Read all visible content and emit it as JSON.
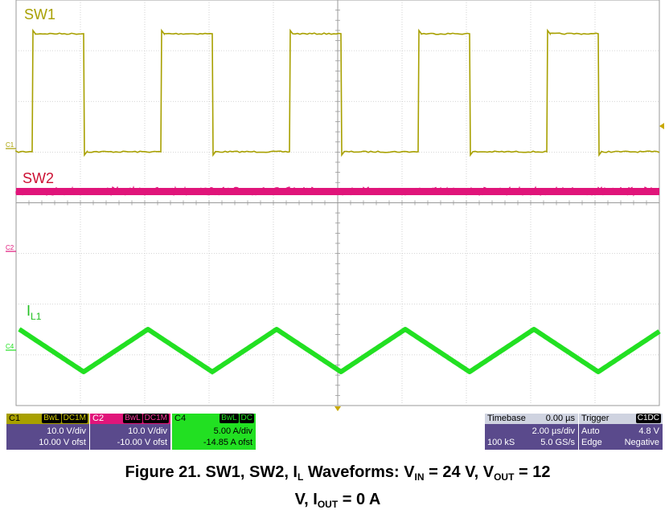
{
  "chart_data": {
    "type": "line",
    "title": "",
    "x_unit": "µs",
    "xlim": [
      -10,
      10
    ],
    "series": [
      {
        "name": "SW1",
        "color": "#a8a000",
        "shape": "square",
        "period_us": 4.0,
        "high_V": 24,
        "low_V": 0,
        "rising_edges_us": [
          -9.5,
          -5.5,
          -1.5,
          2.5,
          6.5
        ],
        "falling_edges_us": [
          -7.9,
          -3.9,
          0.1,
          4.1,
          8.1
        ]
      },
      {
        "name": "SW2",
        "color": "#e0157a",
        "shape": "flat",
        "level_V": 0
      },
      {
        "name": "I_L1",
        "label_main": "I",
        "label_sub": "L1",
        "color": "#22e022",
        "shape": "triangle",
        "period_us": 4.0,
        "min_A": -1.2,
        "max_A": 1.2,
        "peaks_us": [
          -5.9,
          -1.9,
          2.1,
          6.1
        ],
        "valleys_us": [
          -7.9,
          -3.9,
          0.1,
          4.1,
          8.1
        ]
      }
    ],
    "channel_markers": [
      "C1",
      "C2",
      "C4"
    ]
  },
  "panels": {
    "c1": {
      "name": "C1",
      "tag1": "BwL",
      "tag2": "DC1M",
      "vdiv": "10.0 V/div",
      "offset": "10.00 V ofst"
    },
    "c2": {
      "name": "C2",
      "tag1": "BwL",
      "tag2": "DC1M",
      "vdiv": "10.0 V/div",
      "offset": "-10.00 V ofst"
    },
    "c4": {
      "name": "C4",
      "tag1": "BwL",
      "tag2": "DC",
      "vdiv": "5.00 A/div",
      "offset": "-14.85 A ofst"
    },
    "timebase": {
      "label": "Timebase",
      "delay": "0.00 µs",
      "per_div": "2.00 µs/div",
      "samples": "100 kS",
      "rate": "5.0 GS/s"
    },
    "trigger": {
      "label": "Trigger",
      "tag": "C1DC",
      "mode": "Auto",
      "level": "4.8 V",
      "type": "Edge",
      "slope": "Negative"
    }
  },
  "caption": {
    "p1": "Figure 21. SW1, SW2, I",
    "s1": "L",
    "p2": " Waveforms: V",
    "s2": "IN",
    "p3": " = 24 V, V",
    "s3": "OUT",
    "p4": " = 12",
    "p5": "V, I",
    "s5": "OUT",
    "p6": " = 0 A"
  }
}
